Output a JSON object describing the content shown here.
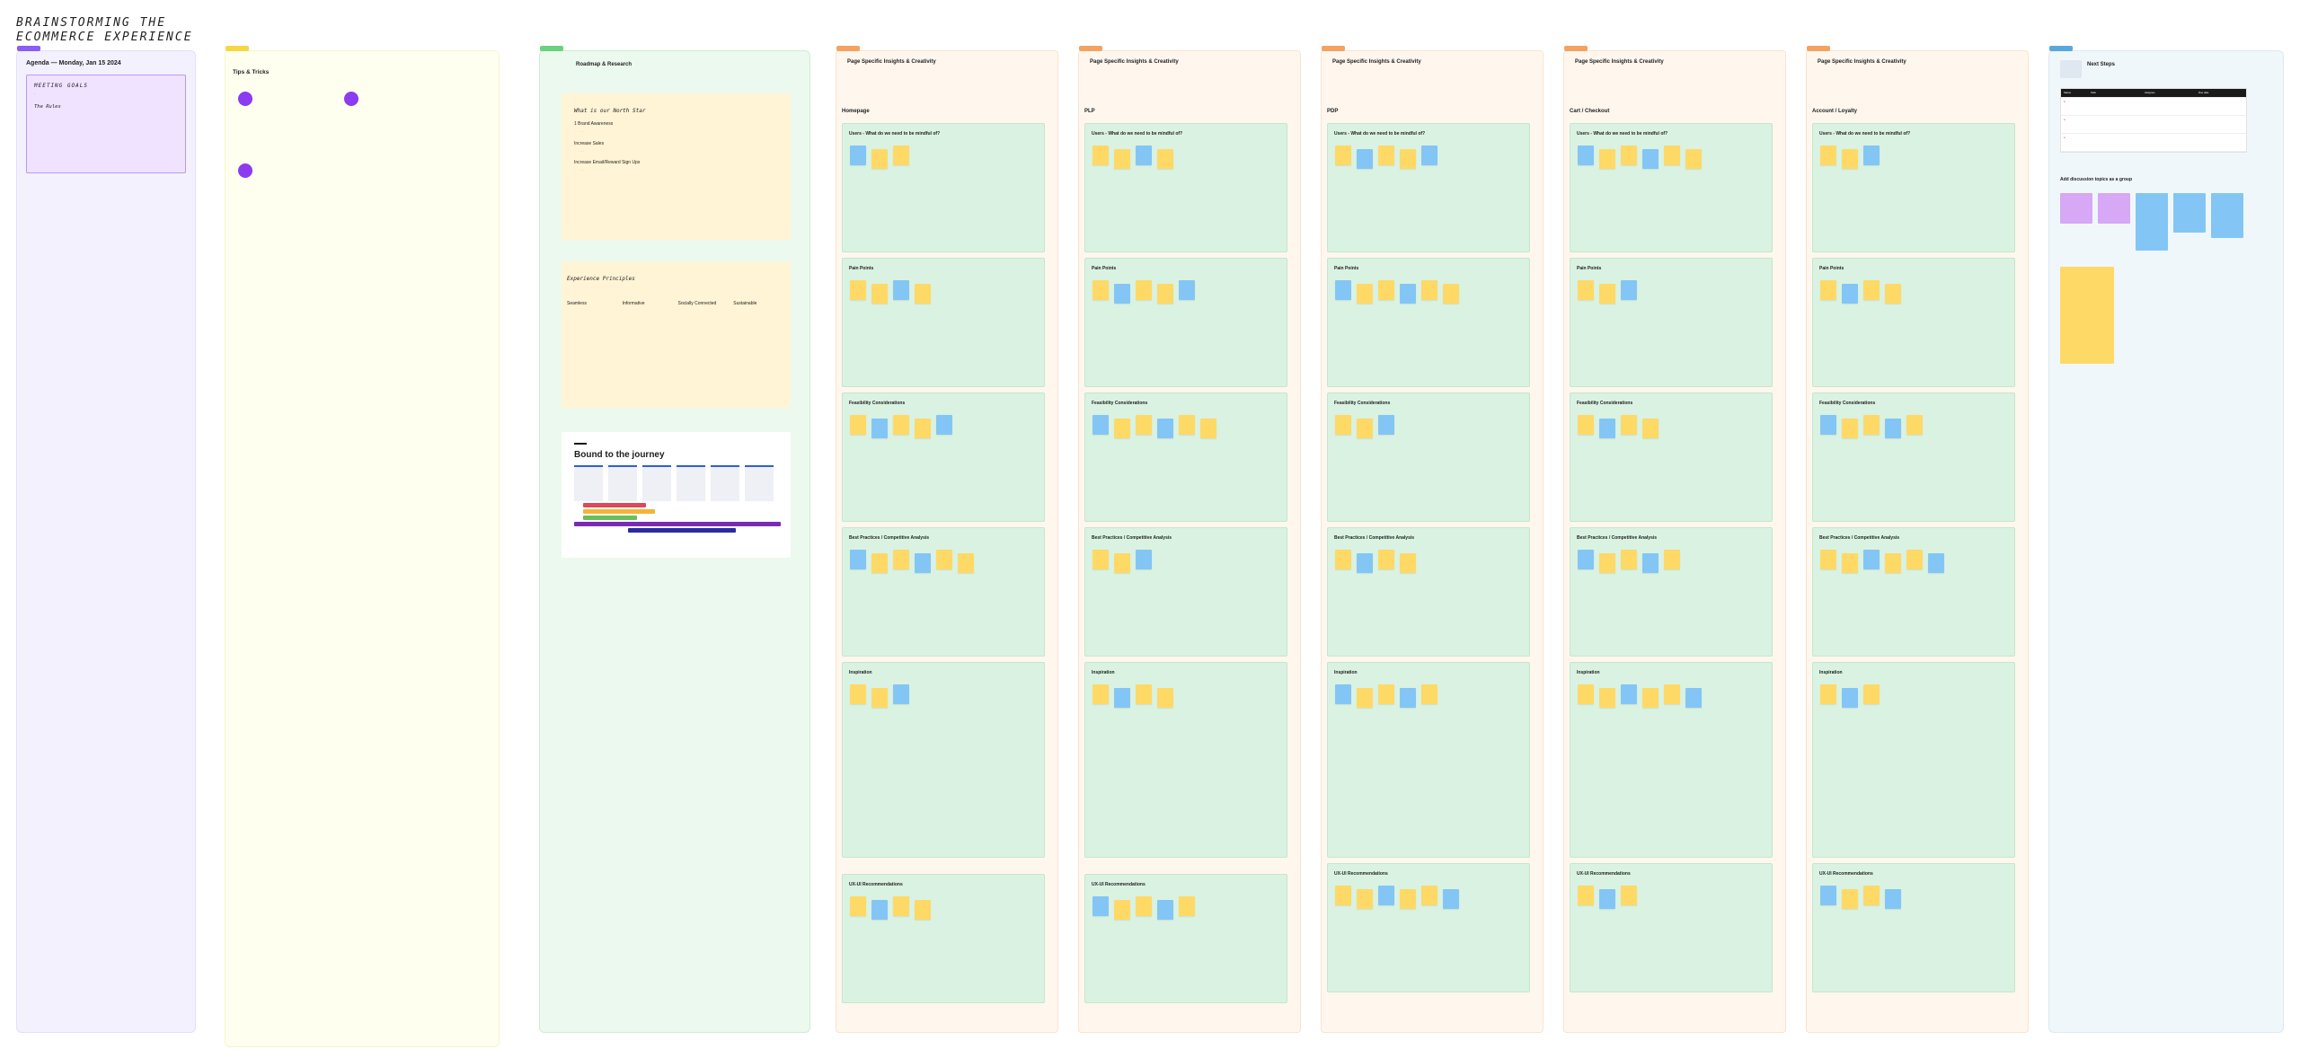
{
  "title_lines": [
    "BRAINSTORMING THE",
    "ECOMMERCE EXPERIENCE"
  ],
  "agenda": {
    "title": "Agenda — Monday, Jan 15 2024",
    "card_heading": "MEETING GOALS",
    "card_sub": "The Rules"
  },
  "tips": {
    "title": "Tips & Tricks"
  },
  "roadmap": {
    "title": "Roadmap & Research",
    "north_star": "What is our North Star",
    "ns_items": [
      "1 Brand Awareness",
      "Increase Sales",
      "Increase Email/Reward Sign Ups"
    ],
    "principles_title": "Experience Principles",
    "principles": [
      "Seamless",
      "Informative",
      "Socially Connected",
      "Sustainable"
    ],
    "journey_title": "Bound to the journey"
  },
  "page_sections": [
    {
      "head": "Page Specific Insights & Creativity",
      "page": "Homepage"
    },
    {
      "head": "Page Specific Insights & Creativity",
      "page": "PLP"
    },
    {
      "head": "Page Specific Insights & Creativity",
      "page": "PDP"
    },
    {
      "head": "Page Specific Insights & Creativity",
      "page": "Cart / Checkout"
    },
    {
      "head": "Page Specific Insights & Creativity",
      "page": "Account / Loyalty"
    }
  ],
  "block_labels": {
    "users": "Users - What do we need to be mindful of?",
    "pain": "Pain Points",
    "feasibility": "Feasibility Considerations",
    "best": "Best Practices / Competitive Analysis",
    "inspiration": "Inspiration",
    "uxui": "UX-UI Recommendations"
  },
  "next_steps": {
    "title": "Next Steps",
    "table_headers": [
      "Status",
      "Task",
      "Assignee",
      "Due date"
    ],
    "add_topics": "Add discussion topics as a group"
  },
  "colors": {
    "section_tag_page": "#f4a261",
    "sticky_yellow": "#ffd966",
    "sticky_blue": "#83c6f5",
    "block_green": "#daf2e2"
  }
}
